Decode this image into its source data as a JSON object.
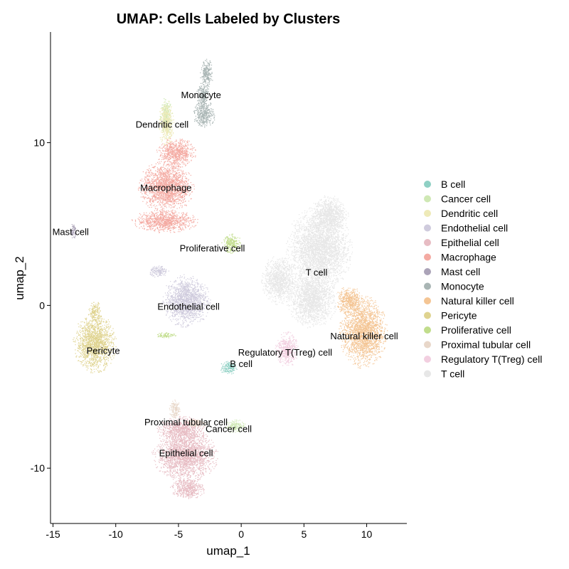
{
  "chart_data": {
    "type": "scatter",
    "title": "UMAP: Cells Labeled by Clusters",
    "xlabel": "umap_1",
    "ylabel": "umap_2",
    "xlim": [
      -15.2,
      13.2
    ],
    "ylim": [
      -13.4,
      16.8
    ],
    "xticks": [
      -15,
      -10,
      -5,
      0,
      5,
      10
    ],
    "yticks": [
      -10,
      0,
      10
    ],
    "grid": false,
    "legend_position": "right",
    "series": [
      {
        "name": "B cell",
        "color": "#8fd0c4",
        "blobs": [
          [
            -1.0,
            -3.8,
            0.7,
            0.45
          ]
        ],
        "label": {
          "text": "B cell",
          "x": 0.0,
          "y": -3.6
        }
      },
      {
        "name": "Cancer cell",
        "color": "#cfe8b4",
        "blobs": [
          [
            -0.5,
            -7.4,
            0.9,
            0.4
          ],
          [
            -6.0,
            11.6,
            0.5,
            1.2
          ]
        ],
        "label": {
          "text": "Cancer cell",
          "x": -1.0,
          "y": -7.6
        }
      },
      {
        "name": "Dendritic cell",
        "color": "#eeeab8",
        "blobs": [
          [
            -6.0,
            11.2,
            0.6,
            1.4
          ]
        ],
        "label": {
          "text": "Dendritic cell",
          "x": -6.3,
          "y": 11.1
        }
      },
      {
        "name": "Endothelial cell",
        "color": "#cfcbdd",
        "blobs": [
          [
            -4.4,
            0.3,
            1.9,
            1.6
          ],
          [
            -6.6,
            2.1,
            0.8,
            0.4
          ]
        ],
        "label": {
          "text": "Endothelial cell",
          "x": -4.2,
          "y": -0.1
        }
      },
      {
        "name": "Epithelial cell",
        "color": "#e7bcc3",
        "blobs": [
          [
            -4.5,
            -9.2,
            2.6,
            1.6
          ],
          [
            -4.3,
            -11.2,
            1.4,
            0.7
          ],
          [
            -4.8,
            -7.6,
            1.9,
            0.8
          ]
        ],
        "label": {
          "text": "Epithelial cell",
          "x": -4.4,
          "y": -9.1
        }
      },
      {
        "name": "Macrophage",
        "color": "#f4aaa2",
        "blobs": [
          [
            -6.0,
            7.3,
            2.2,
            1.6
          ],
          [
            -5.2,
            9.4,
            1.6,
            0.9
          ],
          [
            -6.1,
            5.2,
            2.6,
            0.7
          ]
        ],
        "label": {
          "text": "Macrophage",
          "x": -6.0,
          "y": 7.2
        }
      },
      {
        "name": "Mast cell",
        "color": "#aba3b8",
        "blobs": [
          [
            -13.4,
            4.6,
            0.25,
            0.5
          ]
        ],
        "label": {
          "text": "Mast cell",
          "x": -13.6,
          "y": 4.5
        }
      },
      {
        "name": "Monocyte",
        "color": "#a9b5b4",
        "blobs": [
          [
            -2.8,
            14.2,
            0.5,
            1.0
          ],
          [
            -3.0,
            11.8,
            0.9,
            0.9
          ],
          [
            -3.1,
            13.0,
            0.55,
            0.7
          ]
        ],
        "label": {
          "text": "Monocyte",
          "x": -3.2,
          "y": 12.9
        }
      },
      {
        "name": "Natural killer cell",
        "color": "#f4c594",
        "blobs": [
          [
            9.7,
            -1.6,
            1.9,
            2.2
          ],
          [
            8.6,
            0.3,
            1.1,
            0.9
          ]
        ],
        "label": {
          "text": "Natural killer cell",
          "x": 9.8,
          "y": -1.9
        }
      },
      {
        "name": "Pericyte",
        "color": "#dfd38f",
        "blobs": [
          [
            -11.7,
            -2.3,
            1.7,
            1.8
          ],
          [
            -11.7,
            -0.4,
            0.5,
            0.7
          ]
        ],
        "label": {
          "text": "Pericyte",
          "x": -11.0,
          "y": -2.8
        }
      },
      {
        "name": "Proliferative cell",
        "color": "#c1dd8c",
        "blobs": [
          [
            -0.8,
            3.8,
            0.8,
            0.6
          ],
          [
            -6.0,
            -1.8,
            0.8,
            0.2
          ]
        ],
        "label": {
          "text": "Proliferative cell",
          "x": -2.3,
          "y": 3.5
        }
      },
      {
        "name": "Proximal tubular cell",
        "color": "#e8d7c9",
        "blobs": [
          [
            -5.3,
            -6.4,
            0.5,
            0.6
          ],
          [
            -3.7,
            -7.2,
            0.9,
            0.3
          ]
        ],
        "label": {
          "text": "Proximal tubular cell",
          "x": -4.4,
          "y": -7.2
        }
      },
      {
        "name": "Regulatory T(Treg) cell",
        "color": "#f2cfe0",
        "blobs": [
          [
            3.6,
            -2.7,
            0.9,
            1.1
          ]
        ],
        "label": {
          "text": "Regulatory T(Treg) cell",
          "x": 3.5,
          "y": -2.9
        }
      },
      {
        "name": "T cell",
        "color": "#e7e7e7",
        "blobs": [
          [
            6.2,
            3.5,
            2.6,
            2.6
          ],
          [
            5.6,
            0.4,
            2.0,
            1.8
          ],
          [
            3.0,
            1.6,
            1.4,
            1.5
          ],
          [
            7.0,
            5.6,
            1.5,
            1.2
          ]
        ],
        "label": {
          "text": "T cell",
          "x": 6.0,
          "y": 2.0
        }
      }
    ]
  }
}
